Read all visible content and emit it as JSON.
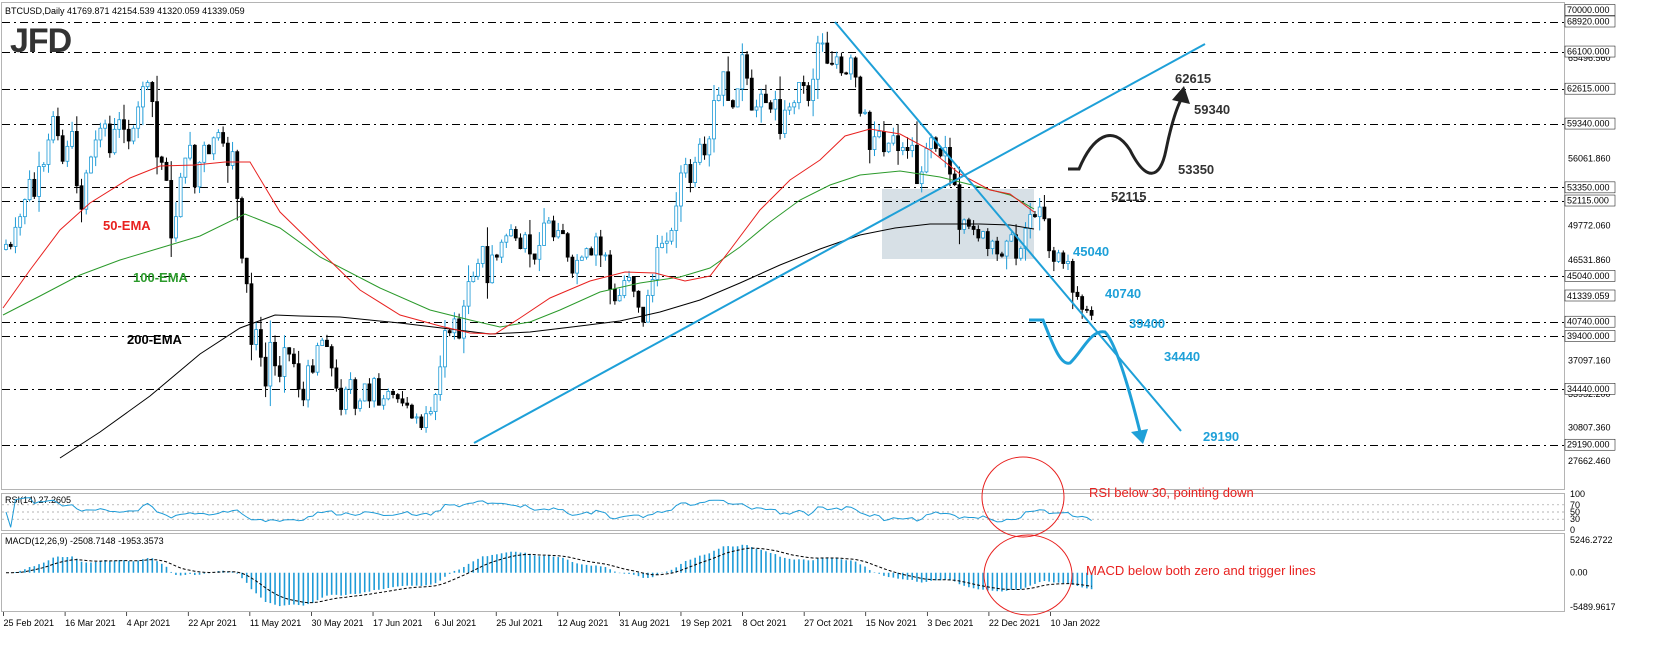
{
  "header": {
    "symbol_line": "BTCUSD,Daily  41769.871 42154.539 41320.059 41339.059",
    "logo": "JFD"
  },
  "price_axis": {
    "ticks": [
      "70000.000",
      "68920.000",
      "66100.000",
      "65496.560",
      "62615.000",
      "59340.000",
      "56061.860",
      "53350.000",
      "52115.000",
      "49772.060",
      "46531.860",
      "45040.000",
      "43386.960",
      "40740.000",
      "39400.000",
      "37097.160",
      "34440.000",
      "33952.200",
      "30807.360",
      "29190.000",
      "27662.460"
    ],
    "level_ticks": [
      "70000.000",
      "68920.000",
      "66100.000",
      "62615.000",
      "59340.000",
      "53350.000",
      "52115.000",
      "45040.000",
      "40740.000",
      "39400.000",
      "34440.000",
      "29190.000"
    ],
    "plain_ticks": [
      "65496.560",
      "56061.860",
      "49772.060",
      "46531.860",
      "43386.960",
      "37097.160",
      "33952.200",
      "30807.360",
      "27662.460"
    ],
    "current_price": "41339.059"
  },
  "rsi_axis": {
    "ticks": [
      "100",
      "70",
      "50",
      "30",
      "0"
    ]
  },
  "macd_axis": {
    "ticks": [
      "5246.2722",
      "0.00",
      "-5489.9617"
    ]
  },
  "indicators": {
    "rsi_title": "RSI(14) 27.2605",
    "macd_title": "MACD(12,26,9) -2508.7148 -1953.3573"
  },
  "annotations": {
    "ema50": "50-EMA",
    "ema100": "100-EMA",
    "ema200": "200-EMA",
    "levels_above": [
      "62615",
      "59340",
      "53350",
      "52115"
    ],
    "levels_below": [
      "45040",
      "40740",
      "39400",
      "34440",
      "29190"
    ],
    "rsi_note": "RSI below 30, pointing down",
    "macd_note": "MACD below both zero and trigger lines"
  },
  "x_axis": {
    "dates": [
      "25 Feb 2021",
      "16 Mar 2021",
      "4 Apr 2021",
      "22 Apr 2021",
      "11 May 2021",
      "30 May 2021",
      "17 Jun 2021",
      "6 Jul 2021",
      "25 Jul 2021",
      "12 Aug 2021",
      "31 Aug 2021",
      "19 Sep 2021",
      "8 Oct 2021",
      "27 Oct 2021",
      "15 Nov 2021",
      "3 Dec 2021",
      "22 Dec 2021",
      "10 Jan 2022"
    ]
  },
  "colors": {
    "bullish_candle": "#1e9bd7",
    "bearish_candle": "#000000",
    "ema50": "#e8211f",
    "ema100": "#2b9a2b",
    "ema200": "#000000",
    "trendline": "#1ea0d8",
    "level_line": "#000000",
    "rsi_line": "#1e9bd7",
    "macd_hist": "#1e9bd7",
    "annotation_red": "#e8211f",
    "consolidation_box": "#c9d6dd"
  },
  "chart_data": {
    "type": "candlestick",
    "symbol": "BTCUSD",
    "timeframe": "Daily",
    "ohlc_last": {
      "open": 41769.871,
      "high": 42154.539,
      "low": 41320.059,
      "close": 41339.059
    },
    "ylim": [
      27662.46,
      70000
    ],
    "horizontal_levels": [
      68920,
      66100,
      62615,
      59340,
      53350,
      52115,
      45040,
      40740,
      39400,
      34440,
      29190
    ],
    "closes": [
      48000,
      47800,
      49600,
      50600,
      52200,
      54100,
      52500,
      55300,
      55500,
      57800,
      60000,
      58200,
      55800,
      57200,
      58600,
      53500,
      51300,
      54700,
      56200,
      57800,
      58900,
      59300,
      56600,
      58800,
      59700,
      58800,
      57700,
      58900,
      60900,
      62800,
      63200,
      61400,
      56200,
      55700,
      54000,
      48600,
      50600,
      54300,
      56100,
      57300,
      53400,
      55700,
      57300,
      56500,
      58000,
      58500,
      57500,
      55400,
      56700,
      52300,
      46700,
      44300,
      38600,
      40000,
      37400,
      34700,
      38800,
      36600,
      35600,
      38300,
      37700,
      36800,
      34400,
      33400,
      36600,
      36000,
      38500,
      39000,
      38400,
      36400,
      34500,
      32500,
      34400,
      35300,
      32600,
      33300,
      34900,
      33300,
      35400,
      32900,
      33500,
      34200,
      33900,
      33500,
      33100,
      32900,
      31700,
      31800,
      30800,
      32100,
      32300,
      33900,
      36500,
      39900,
      39700,
      41000,
      39200,
      42200,
      44500,
      45000,
      46200,
      47800,
      44400,
      47000,
      46800,
      48200,
      48800,
      49400,
      48600,
      47600,
      48900,
      47100,
      46600,
      47900,
      50000,
      50200,
      48700,
      49300,
      49000,
      46800,
      45300,
      46500,
      46800,
      47600,
      47000,
      48700,
      47000,
      47000,
      43800,
      42700,
      43200,
      44600,
      44900,
      43600,
      42100,
      40700,
      43200,
      44700,
      47700,
      48100,
      48300,
      49300,
      51600,
      54700,
      55500,
      53800,
      55700,
      57400,
      56400,
      57900,
      61500,
      62000,
      64200,
      61500,
      60900,
      62600,
      65800,
      63600,
      60600,
      60900,
      62100,
      61300,
      60700,
      61600,
      58400,
      60600,
      60900,
      61300,
      63200,
      62900,
      61500,
      63500,
      66900,
      66900,
      65000,
      64900,
      65600,
      64100,
      64000,
      65500,
      63700,
      60300,
      60400,
      56900,
      58100,
      58600,
      56700,
      57500,
      58200,
      56800,
      57100,
      56800,
      57300,
      53700,
      54800,
      57000,
      58000,
      57000,
      56300,
      57100,
      54600,
      53600,
      49400,
      50300,
      49700,
      49400,
      48600,
      49200,
      47600,
      48300,
      47100,
      46900,
      48300,
      48900,
      46700,
      47600,
      49500,
      50800,
      50600,
      51500,
      50400,
      47400,
      46400,
      47200,
      46200,
      46400,
      43500,
      43100,
      41900,
      41800,
      41339
    ]
  }
}
